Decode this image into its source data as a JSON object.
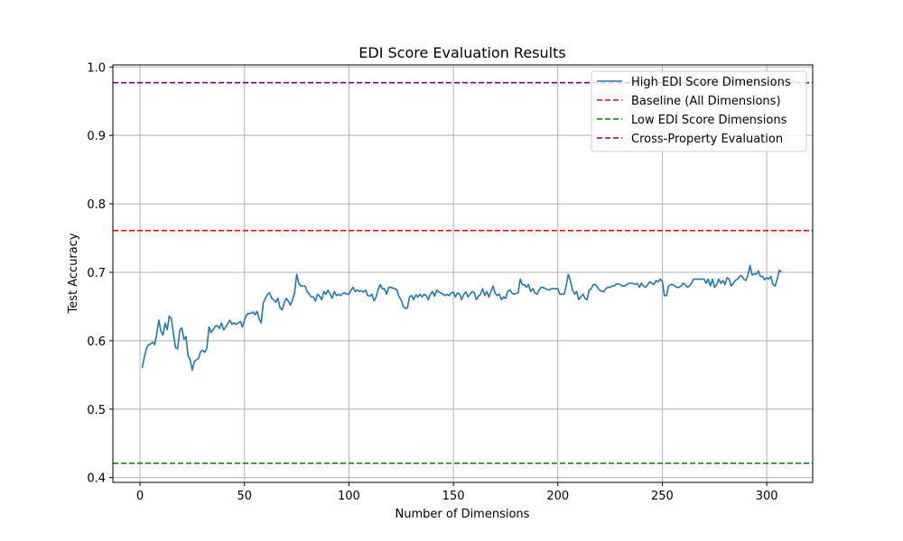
{
  "chart_data": {
    "type": "line",
    "title": "EDI Score Evaluation Results",
    "xlabel": "Number of Dimensions",
    "ylabel": "Test Accuracy",
    "xlim": [
      -13,
      322
    ],
    "ylim": [
      0.393,
      1.003
    ],
    "xticks": [
      0,
      50,
      100,
      150,
      200,
      250,
      300
    ],
    "yticks": [
      0.4,
      0.5,
      0.6,
      0.7,
      0.8,
      0.9,
      1.0
    ],
    "xtick_labels": [
      "0",
      "50",
      "100",
      "150",
      "200",
      "250",
      "300"
    ],
    "ytick_labels": [
      "0.4",
      "0.5",
      "0.6",
      "0.7",
      "0.8",
      "0.9",
      "1.0"
    ],
    "grid": true,
    "legend_position": "top-right",
    "series": [
      {
        "name": "High EDI Score Dimensions",
        "color": "#1f77b4",
        "style": "solid",
        "points": [
          [
            1,
            0.56
          ],
          [
            2,
            0.575
          ],
          [
            3,
            0.588
          ],
          [
            4,
            0.594
          ],
          [
            5,
            0.595
          ],
          [
            6,
            0.598
          ],
          [
            7,
            0.594
          ],
          [
            8,
            0.61
          ],
          [
            9,
            0.63
          ],
          [
            10,
            0.614
          ],
          [
            11,
            0.608
          ],
          [
            12,
            0.626
          ],
          [
            13,
            0.616
          ],
          [
            14,
            0.636
          ],
          [
            15,
            0.632
          ],
          [
            16,
            0.61
          ],
          [
            17,
            0.59
          ],
          [
            18,
            0.588
          ],
          [
            19,
            0.615
          ],
          [
            20,
            0.619
          ],
          [
            21,
            0.602
          ],
          [
            22,
            0.606
          ],
          [
            23,
            0.578
          ],
          [
            24,
            0.572
          ],
          [
            25,
            0.557
          ],
          [
            26,
            0.57
          ],
          [
            27,
            0.572
          ],
          [
            28,
            0.574
          ],
          [
            29,
            0.584
          ],
          [
            30,
            0.586
          ],
          [
            31,
            0.583
          ],
          [
            32,
            0.589
          ],
          [
            33,
            0.62
          ],
          [
            34,
            0.612
          ],
          [
            35,
            0.616
          ],
          [
            36,
            0.621
          ],
          [
            37,
            0.622
          ],
          [
            38,
            0.618
          ],
          [
            39,
            0.626
          ],
          [
            40,
            0.616
          ],
          [
            41,
            0.62
          ],
          [
            42,
            0.625
          ],
          [
            43,
            0.63
          ],
          [
            44,
            0.624
          ],
          [
            45,
            0.626
          ],
          [
            46,
            0.624
          ],
          [
            47,
            0.626
          ],
          [
            48,
            0.628
          ],
          [
            49,
            0.62
          ],
          [
            50,
            0.63
          ],
          [
            51,
            0.638
          ],
          [
            52,
            0.64
          ],
          [
            53,
            0.64
          ],
          [
            54,
            0.642
          ],
          [
            55,
            0.638
          ],
          [
            56,
            0.643
          ],
          [
            57,
            0.632
          ],
          [
            58,
            0.626
          ],
          [
            59,
            0.655
          ],
          [
            60,
            0.662
          ],
          [
            61,
            0.668
          ],
          [
            62,
            0.67
          ],
          [
            63,
            0.662
          ],
          [
            64,
            0.66
          ],
          [
            65,
            0.656
          ],
          [
            66,
            0.662
          ],
          [
            67,
            0.648
          ],
          [
            68,
            0.645
          ],
          [
            69,
            0.655
          ],
          [
            70,
            0.662
          ],
          [
            71,
            0.658
          ],
          [
            72,
            0.652
          ],
          [
            73,
            0.66
          ],
          [
            74,
            0.67
          ],
          [
            75,
            0.697
          ],
          [
            76,
            0.684
          ],
          [
            77,
            0.68
          ],
          [
            78,
            0.68
          ],
          [
            79,
            0.68
          ],
          [
            80,
            0.672
          ],
          [
            81,
            0.668
          ],
          [
            82,
            0.664
          ],
          [
            83,
            0.664
          ],
          [
            84,
            0.658
          ],
          [
            85,
            0.668
          ],
          [
            86,
            0.665
          ],
          [
            87,
            0.66
          ],
          [
            88,
            0.672
          ],
          [
            89,
            0.668
          ],
          [
            90,
            0.674
          ],
          [
            91,
            0.668
          ],
          [
            92,
            0.662
          ],
          [
            93,
            0.672
          ],
          [
            94,
            0.666
          ],
          [
            95,
            0.668
          ],
          [
            96,
            0.666
          ],
          [
            97,
            0.669
          ],
          [
            98,
            0.67
          ],
          [
            99,
            0.668
          ],
          [
            100,
            0.668
          ],
          [
            101,
            0.674
          ],
          [
            102,
            0.678
          ],
          [
            103,
            0.672
          ],
          [
            104,
            0.674
          ],
          [
            105,
            0.672
          ],
          [
            106,
            0.673
          ],
          [
            107,
            0.671
          ],
          [
            108,
            0.674
          ],
          [
            109,
            0.666
          ],
          [
            110,
            0.665
          ],
          [
            111,
            0.668
          ],
          [
            112,
            0.658
          ],
          [
            113,
            0.664
          ],
          [
            114,
            0.675
          ],
          [
            115,
            0.682
          ],
          [
            116,
            0.676
          ],
          [
            117,
            0.676
          ],
          [
            118,
            0.668
          ],
          [
            119,
            0.678
          ],
          [
            120,
            0.678
          ],
          [
            121,
            0.677
          ],
          [
            122,
            0.676
          ],
          [
            123,
            0.674
          ],
          [
            124,
            0.664
          ],
          [
            125,
            0.66
          ],
          [
            126,
            0.65
          ],
          [
            127,
            0.647
          ],
          [
            128,
            0.648
          ],
          [
            129,
            0.664
          ],
          [
            130,
            0.666
          ],
          [
            131,
            0.66
          ],
          [
            132,
            0.667
          ],
          [
            133,
            0.664
          ],
          [
            134,
            0.668
          ],
          [
            135,
            0.664
          ],
          [
            136,
            0.668
          ],
          [
            137,
            0.666
          ],
          [
            138,
            0.66
          ],
          [
            139,
            0.668
          ],
          [
            140,
            0.672
          ],
          [
            141,
            0.665
          ],
          [
            142,
            0.674
          ],
          [
            143,
            0.671
          ],
          [
            144,
            0.67
          ],
          [
            145,
            0.668
          ],
          [
            146,
            0.666
          ],
          [
            147,
            0.668
          ],
          [
            148,
            0.666
          ],
          [
            149,
            0.67
          ],
          [
            150,
            0.671
          ],
          [
            151,
            0.664
          ],
          [
            152,
            0.67
          ],
          [
            153,
            0.668
          ],
          [
            154,
            0.66
          ],
          [
            155,
            0.668
          ],
          [
            156,
            0.671
          ],
          [
            157,
            0.664
          ],
          [
            158,
            0.668
          ],
          [
            159,
            0.672
          ],
          [
            160,
            0.67
          ],
          [
            161,
            0.66
          ],
          [
            162,
            0.665
          ],
          [
            163,
            0.668
          ],
          [
            164,
            0.676
          ],
          [
            165,
            0.666
          ],
          [
            166,
            0.672
          ],
          [
            167,
            0.664
          ],
          [
            168,
            0.672
          ],
          [
            169,
            0.68
          ],
          [
            170,
            0.669
          ],
          [
            171,
            0.666
          ],
          [
            172,
            0.668
          ],
          [
            173,
            0.66
          ],
          [
            174,
            0.664
          ],
          [
            175,
            0.662
          ],
          [
            176,
            0.672
          ],
          [
            177,
            0.674
          ],
          [
            178,
            0.67
          ],
          [
            179,
            0.668
          ],
          [
            180,
            0.669
          ],
          [
            181,
            0.67
          ],
          [
            182,
            0.69
          ],
          [
            183,
            0.682
          ],
          [
            184,
            0.682
          ],
          [
            185,
            0.678
          ],
          [
            186,
            0.682
          ],
          [
            187,
            0.672
          ],
          [
            188,
            0.676
          ],
          [
            189,
            0.67
          ],
          [
            190,
            0.668
          ],
          [
            191,
            0.674
          ],
          [
            192,
            0.678
          ],
          [
            193,
            0.678
          ],
          [
            194,
            0.676
          ],
          [
            195,
            0.675
          ],
          [
            196,
            0.674
          ],
          [
            197,
            0.676
          ],
          [
            198,
            0.676
          ],
          [
            199,
            0.676
          ],
          [
            200,
            0.676
          ],
          [
            201,
            0.668
          ],
          [
            202,
            0.668
          ],
          [
            203,
            0.668
          ],
          [
            204,
            0.68
          ],
          [
            205,
            0.697
          ],
          [
            206,
            0.688
          ],
          [
            207,
            0.674
          ],
          [
            208,
            0.668
          ],
          [
            209,
            0.672
          ],
          [
            210,
            0.66
          ],
          [
            211,
            0.664
          ],
          [
            212,
            0.668
          ],
          [
            213,
            0.662
          ],
          [
            214,
            0.66
          ],
          [
            215,
            0.674
          ],
          [
            216,
            0.676
          ],
          [
            217,
            0.682
          ],
          [
            218,
            0.682
          ],
          [
            219,
            0.678
          ],
          [
            220,
            0.674
          ],
          [
            221,
            0.672
          ],
          [
            222,
            0.672
          ],
          [
            223,
            0.676
          ],
          [
            224,
            0.678
          ],
          [
            225,
            0.678
          ],
          [
            226,
            0.68
          ],
          [
            227,
            0.68
          ],
          [
            228,
            0.683
          ],
          [
            229,
            0.683
          ],
          [
            230,
            0.682
          ],
          [
            231,
            0.68
          ],
          [
            232,
            0.68
          ],
          [
            233,
            0.682
          ],
          [
            234,
            0.684
          ],
          [
            235,
            0.684
          ],
          [
            236,
            0.684
          ],
          [
            237,
            0.682
          ],
          [
            238,
            0.684
          ],
          [
            239,
            0.678
          ],
          [
            240,
            0.684
          ],
          [
            241,
            0.68
          ],
          [
            242,
            0.678
          ],
          [
            243,
            0.682
          ],
          [
            244,
            0.686
          ],
          [
            245,
            0.684
          ],
          [
            246,
            0.682
          ],
          [
            247,
            0.688
          ],
          [
            248,
            0.686
          ],
          [
            249,
            0.69
          ],
          [
            250,
            0.687
          ],
          [
            251,
            0.666
          ],
          [
            252,
            0.666
          ],
          [
            253,
            0.68
          ],
          [
            254,
            0.682
          ],
          [
            255,
            0.682
          ],
          [
            256,
            0.68
          ],
          [
            257,
            0.678
          ],
          [
            258,
            0.678
          ],
          [
            259,
            0.68
          ],
          [
            260,
            0.684
          ],
          [
            261,
            0.682
          ],
          [
            262,
            0.678
          ],
          [
            263,
            0.68
          ],
          [
            264,
            0.684
          ],
          [
            265,
            0.69
          ],
          [
            266,
            0.69
          ],
          [
            267,
            0.69
          ],
          [
            268,
            0.69
          ],
          [
            269,
            0.69
          ],
          [
            270,
            0.69
          ],
          [
            271,
            0.684
          ],
          [
            272,
            0.69
          ],
          [
            273,
            0.68
          ],
          [
            274,
            0.69
          ],
          [
            275,
            0.678
          ],
          [
            276,
            0.682
          ],
          [
            277,
            0.69
          ],
          [
            278,
            0.684
          ],
          [
            279,
            0.688
          ],
          [
            280,
            0.682
          ],
          [
            281,
            0.692
          ],
          [
            282,
            0.69
          ],
          [
            283,
            0.68
          ],
          [
            284,
            0.684
          ],
          [
            285,
            0.688
          ],
          [
            286,
            0.69
          ],
          [
            287,
            0.694
          ],
          [
            288,
            0.695
          ],
          [
            289,
            0.69
          ],
          [
            290,
            0.688
          ],
          [
            291,
            0.696
          ],
          [
            292,
            0.71
          ],
          [
            293,
            0.696
          ],
          [
            294,
            0.698
          ],
          [
            295,
            0.697
          ],
          [
            296,
            0.702
          ],
          [
            297,
            0.694
          ],
          [
            298,
            0.694
          ],
          [
            299,
            0.689
          ],
          [
            300,
            0.692
          ],
          [
            301,
            0.69
          ],
          [
            302,
            0.694
          ],
          [
            303,
            0.682
          ],
          [
            304,
            0.68
          ],
          [
            305,
            0.69
          ],
          [
            306,
            0.703
          ],
          [
            307,
            0.7
          ]
        ]
      },
      {
        "name": "Baseline (All Dimensions)",
        "color": "#ff0000",
        "style": "dashed",
        "y": 0.761
      },
      {
        "name": "Low EDI Score Dimensions",
        "color": "#008000",
        "style": "dashed",
        "y": 0.421
      },
      {
        "name": "Cross-Property Evaluation",
        "color": "#800080",
        "style": "dashed",
        "y": 0.977
      }
    ]
  }
}
